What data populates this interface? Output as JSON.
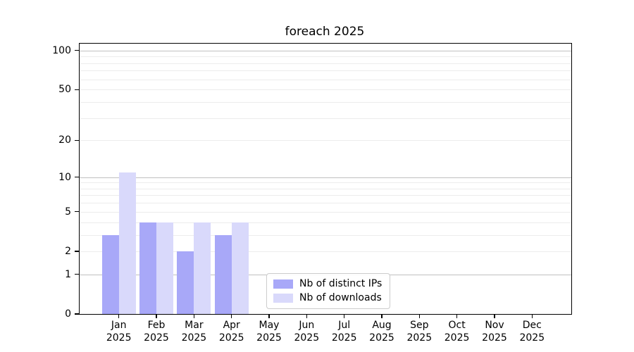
{
  "chart_data": {
    "type": "bar",
    "title": "foreach 2025",
    "categories": [
      "Jan",
      "Feb",
      "Mar",
      "Apr",
      "May",
      "Jun",
      "Jul",
      "Aug",
      "Sep",
      "Oct",
      "Nov",
      "Dec"
    ],
    "year": "2025",
    "series": [
      {
        "name": "Nb of distinct IPs",
        "color": "#a8a8f8",
        "values": [
          3,
          4,
          2,
          3,
          0,
          0,
          0,
          0,
          0,
          0,
          0,
          0
        ]
      },
      {
        "name": "Nb of downloads",
        "color": "#d9d9fb",
        "values": [
          11,
          4,
          4,
          4,
          0,
          0,
          0,
          0,
          0,
          0,
          0,
          0
        ]
      }
    ],
    "yscale": "log1p",
    "ylim": [
      0,
      113
    ],
    "yticks": [
      0,
      1,
      2,
      5,
      10,
      20,
      50,
      100
    ],
    "grid": "horizontal, minor lines 2-9/20-90, major lines 1/10/100",
    "legend_position": "lower center-left inside plot",
    "colors": {
      "grid_minor": "#ececec",
      "grid_major": "#c0c0c0",
      "frame": "#000000",
      "text": "#000000"
    }
  }
}
